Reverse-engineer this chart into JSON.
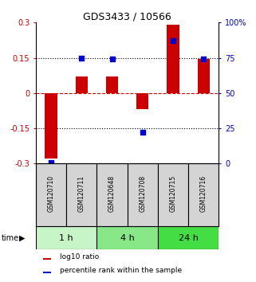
{
  "title": "GDS3433 / 10566",
  "samples": [
    "GSM120710",
    "GSM120711",
    "GSM120648",
    "GSM120708",
    "GSM120715",
    "GSM120716"
  ],
  "log10_ratio": [
    -0.28,
    0.07,
    0.07,
    -0.07,
    0.29,
    0.145
  ],
  "percentile_rank": [
    1,
    75,
    74,
    22,
    87,
    74
  ],
  "time_groups": [
    {
      "label": "1 h",
      "indices": [
        0,
        1
      ],
      "color": "#c8f5c8"
    },
    {
      "label": "4 h",
      "indices": [
        2,
        3
      ],
      "color": "#88e888"
    },
    {
      "label": "24 h",
      "indices": [
        4,
        5
      ],
      "color": "#44dd44"
    }
  ],
  "ylim_left": [
    -0.3,
    0.3
  ],
  "ylim_right": [
    0,
    100
  ],
  "yticks_left": [
    -0.3,
    -0.15,
    0,
    0.15,
    0.3
  ],
  "yticks_right": [
    0,
    25,
    50,
    75,
    100
  ],
  "bar_color": "#cc0000",
  "dot_color": "#0000cc",
  "hline_color": "#cc0000",
  "grid_color": "#000000",
  "background_color": "#ffffff",
  "sample_bg_color": "#d4d4d4",
  "label_log10": "log10 ratio",
  "label_pct": "percentile rank within the sample",
  "bar_width": 0.4
}
